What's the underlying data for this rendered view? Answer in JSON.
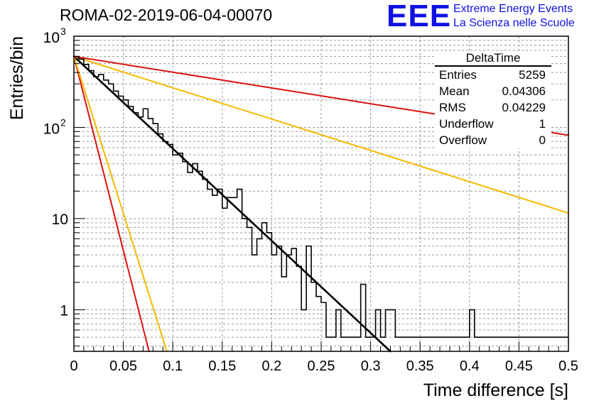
{
  "header": {
    "title": "ROMA-02-2019-06-04-00070",
    "brand_logo": "EEE",
    "brand_line1": "Extreme Energy Events",
    "brand_line2": "La Scienza nelle Scuole"
  },
  "stats_box": {
    "title": "DeltaTime",
    "rows": [
      {
        "label": "Entries",
        "value": "5259"
      },
      {
        "label": "Mean",
        "value": "0.04306"
      },
      {
        "label": "RMS",
        "value": "0.04229"
      },
      {
        "label": "Underflow",
        "value": "1"
      },
      {
        "label": "Overflow",
        "value": "0"
      }
    ]
  },
  "chart_data": {
    "type": "histogram",
    "title": "ROMA-02-2019-06-04-00070",
    "xlabel": "Time difference [s]",
    "ylabel": "Entries/bin",
    "xlim": [
      0,
      0.5
    ],
    "ylim": [
      0.35,
      1000
    ],
    "yscale": "log",
    "grid": true,
    "x_ticks": [
      "0",
      "0.05",
      "0.1",
      "0.15",
      "0.2",
      "0.25",
      "0.3",
      "0.35",
      "0.4",
      "0.45",
      "0.5"
    ],
    "y_ticks": [
      {
        "value": 1,
        "label": "1"
      },
      {
        "value": 10,
        "label": "10"
      },
      {
        "value": 100,
        "label": "10",
        "exp": "2"
      },
      {
        "value": 1000,
        "label": "10",
        "exp": "3"
      }
    ],
    "bin_width": 0.005,
    "histogram": {
      "name": "DeltaTime",
      "color": "#000000",
      "values": [
        600,
        560,
        490,
        420,
        360,
        380,
        330,
        300,
        250,
        220,
        200,
        170,
        145,
        130,
        160,
        125,
        110,
        85,
        70,
        65,
        50,
        52,
        42,
        32,
        40,
        33,
        27,
        21,
        18,
        21,
        13,
        17,
        17,
        21,
        10,
        8,
        4,
        6,
        9,
        7,
        4,
        5,
        2.3,
        4,
        4.7,
        3,
        1,
        5,
        2,
        1.4,
        1.2,
        0.5,
        0.5,
        1,
        0.5,
        0.5,
        0.5,
        0.5,
        1.9,
        0.5,
        0.5,
        1,
        0.5,
        1,
        1,
        0.5,
        0.5,
        0.5,
        0.5,
        0.5,
        0.5,
        0.5,
        0.5,
        0.5,
        0.5,
        0.5,
        0.5,
        0.5,
        0.5,
        0.5,
        1,
        0.5,
        0.5,
        0.5,
        0.5,
        0.5,
        0.5,
        0.5,
        0.5,
        0.5,
        0.5,
        0.5,
        0.5,
        0.5,
        0.5,
        0.5,
        0.5,
        0.5,
        0.5,
        0.5
      ]
    },
    "curves": [
      {
        "color": "#000000",
        "x0": 0.0,
        "y0": 600,
        "x1": 0.32,
        "y1": 0.35,
        "width": 2.6
      },
      {
        "color": "#dd1111",
        "x0": 0.0,
        "y0": 600,
        "x1": 0.076,
        "y1": 0.35,
        "width": 2
      },
      {
        "color": "#f5b800",
        "x0": 0.0,
        "y0": 600,
        "x1": 0.094,
        "y1": 0.35,
        "width": 2
      },
      {
        "color": "#f5b800",
        "x0": 0.0,
        "y0": 600,
        "x1": 0.5,
        "y1": 11.5,
        "width": 2
      },
      {
        "color": "#dd1111",
        "x0": 0.0,
        "y0": 600,
        "x1": 0.5,
        "y1": 82,
        "width": 2
      }
    ]
  }
}
